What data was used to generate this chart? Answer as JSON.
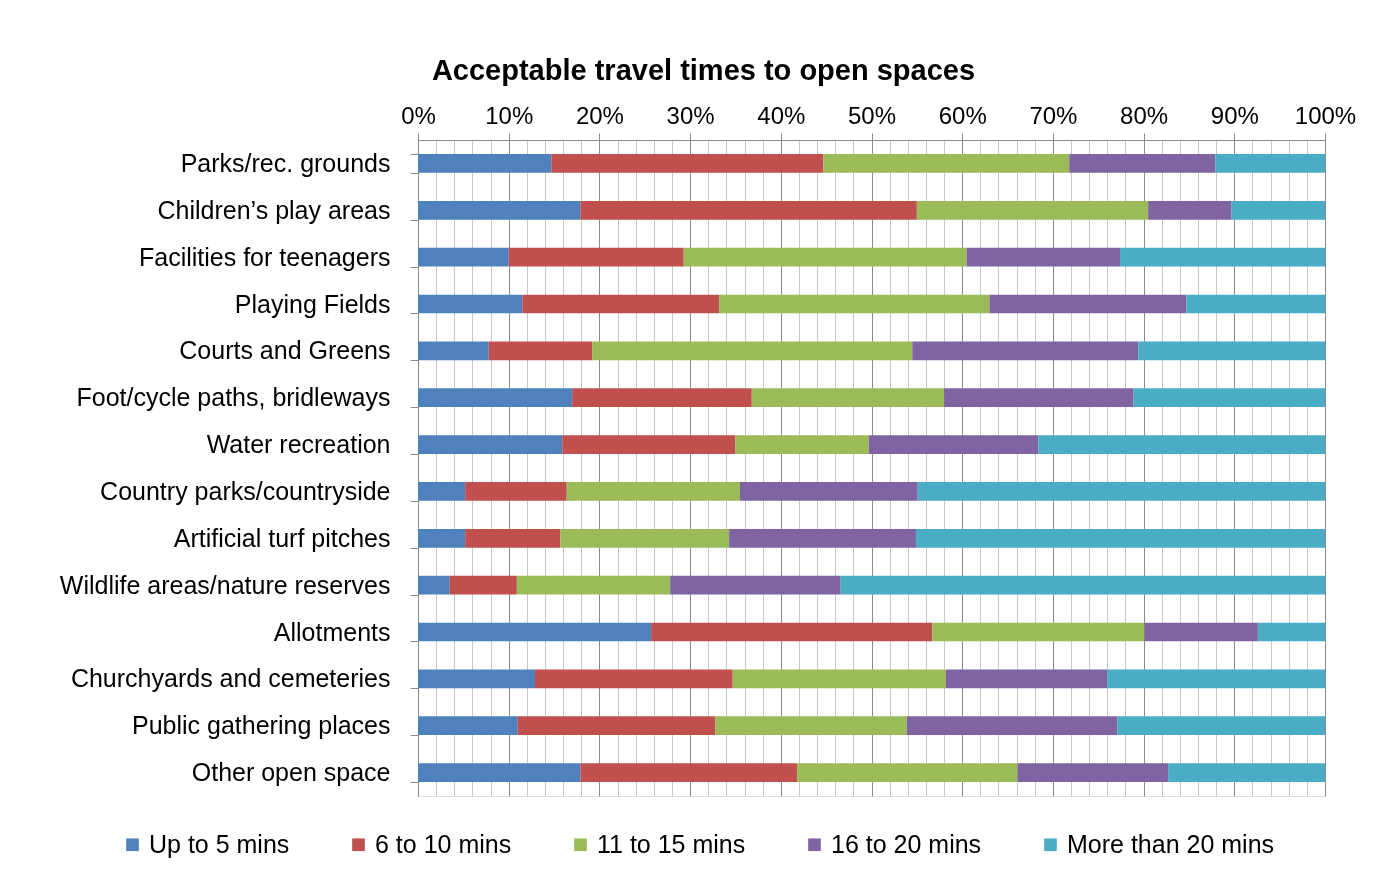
{
  "chart_data": {
    "type": "bar",
    "orientation": "horizontal",
    "stacked": true,
    "title": "Acceptable travel times to open spaces",
    "categories": [
      "Parks/rec. grounds",
      "Children’s play areas",
      "Facilities for teenagers",
      "Playing Fields",
      "Courts and Greens",
      "Foot/cycle paths, bridleways",
      "Water recreation",
      "Country parks/countryside",
      "Artificial turf pitches",
      "Wildlife areas/nature reserves",
      "Allotments",
      "Churchyards and cemeteries",
      "Public gathering places",
      "Other open space"
    ],
    "series": [
      {
        "name": "Up to 5 mins",
        "color": "#4f81bd",
        "values": [
          14.7,
          17.9,
          10.0,
          11.5,
          7.8,
          17.0,
          15.9,
          5.2,
          5.2,
          3.5,
          25.7,
          12.9,
          11.0,
          17.9
        ]
      },
      {
        "name": "6 to 10 mins",
        "color": "#c0504d",
        "values": [
          30.0,
          37.1,
          19.3,
          21.7,
          11.4,
          19.8,
          19.1,
          11.2,
          10.5,
          7.4,
          31.0,
          21.8,
          21.8,
          23.9
        ]
      },
      {
        "name": "11 to 15 mins",
        "color": "#9bbb59",
        "values": [
          27.1,
          25.5,
          31.2,
          29.8,
          35.3,
          21.2,
          14.7,
          19.1,
          18.6,
          16.9,
          23.4,
          23.5,
          21.1,
          24.3
        ]
      },
      {
        "name": "16 to 20 mins",
        "color": "#8064a2",
        "values": [
          16.1,
          9.2,
          16.9,
          21.7,
          24.9,
          20.9,
          18.7,
          19.6,
          20.6,
          18.8,
          12.5,
          17.8,
          23.2,
          16.6
        ]
      },
      {
        "name": "More than 20 mins",
        "color": "#4bacc6",
        "values": [
          12.1,
          10.3,
          22.6,
          15.3,
          20.6,
          21.1,
          31.6,
          44.9,
          45.1,
          53.4,
          7.4,
          24.0,
          22.9,
          17.3
        ]
      }
    ],
    "xlim": [
      0,
      100
    ],
    "xticks": [
      {
        "value": 0,
        "label": "0%"
      },
      {
        "value": 2,
        "label": null
      },
      {
        "value": 4,
        "label": null
      },
      {
        "value": 6,
        "label": null
      },
      {
        "value": 8,
        "label": null
      },
      {
        "value": 10,
        "label": "10%"
      },
      {
        "value": 12,
        "label": null
      },
      {
        "value": 14,
        "label": null
      },
      {
        "value": 16,
        "label": null
      },
      {
        "value": 18,
        "label": null
      },
      {
        "value": 20,
        "label": "20%"
      },
      {
        "value": 22,
        "label": null
      },
      {
        "value": 24,
        "label": null
      },
      {
        "value": 26,
        "label": null
      },
      {
        "value": 28,
        "label": null
      },
      {
        "value": 30,
        "label": "30%"
      },
      {
        "value": 32,
        "label": null
      },
      {
        "value": 34,
        "label": null
      },
      {
        "value": 36,
        "label": null
      },
      {
        "value": 38,
        "label": null
      },
      {
        "value": 40,
        "label": "40%"
      },
      {
        "value": 42,
        "label": null
      },
      {
        "value": 44,
        "label": null
      },
      {
        "value": 46,
        "label": null
      },
      {
        "value": 48,
        "label": null
      },
      {
        "value": 50,
        "label": "50%"
      },
      {
        "value": 52,
        "label": null
      },
      {
        "value": 54,
        "label": null
      },
      {
        "value": 56,
        "label": null
      },
      {
        "value": 58,
        "label": null
      },
      {
        "value": 60,
        "label": "60%"
      },
      {
        "value": 62,
        "label": null
      },
      {
        "value": 64,
        "label": null
      },
      {
        "value": 66,
        "label": null
      },
      {
        "value": 68,
        "label": null
      },
      {
        "value": 70,
        "label": "70%"
      },
      {
        "value": 72,
        "label": null
      },
      {
        "value": 74,
        "label": null
      },
      {
        "value": 76,
        "label": null
      },
      {
        "value": 78,
        "label": null
      },
      {
        "value": 80,
        "label": "80%"
      },
      {
        "value": 82,
        "label": null
      },
      {
        "value": 84,
        "label": null
      },
      {
        "value": 86,
        "label": null
      },
      {
        "value": 88,
        "label": null
      },
      {
        "value": 90,
        "label": "90%"
      },
      {
        "value": 92,
        "label": null
      },
      {
        "value": 94,
        "label": null
      },
      {
        "value": 96,
        "label": null
      },
      {
        "value": 98,
        "label": null
      },
      {
        "value": 100,
        "label": "100%"
      }
    ],
    "grid": "x",
    "legend": "bottom"
  }
}
